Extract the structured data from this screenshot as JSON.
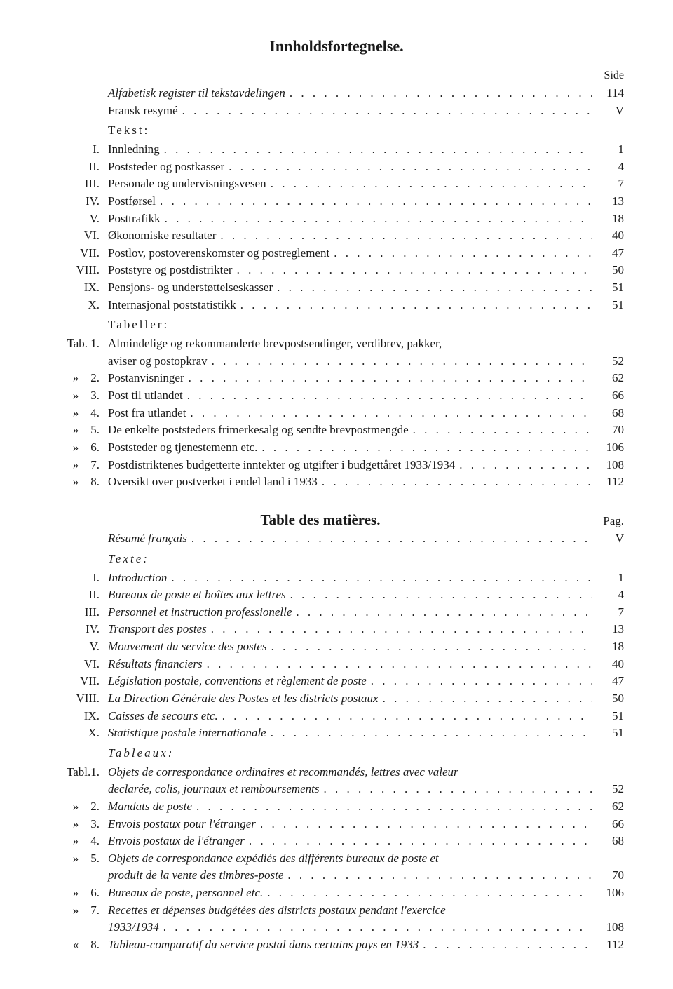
{
  "heading_no": "Innholdsfortegnelse.",
  "page_label_no": "Side",
  "pre_no": [
    {
      "prefix": "",
      "label": "Alfabetisk register til tekstavdelingen",
      "page": "114",
      "italic": true
    },
    {
      "prefix": "",
      "label": "Fransk resymé",
      "page": "V"
    }
  ],
  "tekst_heading": "Tekst:",
  "tekst_items": [
    {
      "prefix": "I.",
      "label": "Innledning",
      "page": "1"
    },
    {
      "prefix": "II.",
      "label": "Poststeder og postkasser",
      "page": "4"
    },
    {
      "prefix": "III.",
      "label": "Personale og undervisningsvesen",
      "page": "7"
    },
    {
      "prefix": "IV.",
      "label": "Postførsel",
      "page": "13"
    },
    {
      "prefix": "V.",
      "label": "Posttrafikk",
      "page": "18"
    },
    {
      "prefix": "VI.",
      "label": "Økonomiske resultater",
      "page": "40"
    },
    {
      "prefix": "VII.",
      "label": "Postlov, postoverenskomster og postreglement",
      "page": "47"
    },
    {
      "prefix": "VIII.",
      "label": "Poststyre og postdistrikter",
      "page": "50"
    },
    {
      "prefix": "IX.",
      "label": "Pensjons- og understøttelseskasser",
      "page": "51"
    },
    {
      "prefix": "X.",
      "label": "Internasjonal poststatistikk",
      "page": "51"
    }
  ],
  "tabeller_heading": "Tabeller:",
  "tabeller_items": [
    {
      "prefix": "Tab. 1.",
      "label": "Almindelige og rekommanderte brevpostsendinger, verdibrev, pakker,",
      "cont": "aviser og postopkrav",
      "page": "52"
    },
    {
      "prefix": "»    2.",
      "label": "Postanvisninger",
      "page": "62"
    },
    {
      "prefix": "»    3.",
      "label": "Post til utlandet",
      "page": "66"
    },
    {
      "prefix": "»    4.",
      "label": "Post fra utlandet",
      "page": "68"
    },
    {
      "prefix": "»    5.",
      "label": "De enkelte poststeders frimerkesalg og sendte brevpostmengde",
      "page": "70"
    },
    {
      "prefix": "»    6.",
      "label": "Poststeder og tjenestemenn etc.",
      "page": "106"
    },
    {
      "prefix": "»    7.",
      "label": "Postdistriktenes budgetterte inntekter og utgifter i budgettåret 1933/1934",
      "page": "108"
    },
    {
      "prefix": "»    8.",
      "label": "Oversikt over postverket i endel land i 1933",
      "page": "112"
    }
  ],
  "heading_fr": "Table des matières.",
  "page_label_fr": "Pag.",
  "pre_fr": [
    {
      "prefix": "",
      "label": "Résumé français",
      "page": "V",
      "italic": true
    }
  ],
  "texte_heading": "Texte:",
  "texte_items": [
    {
      "prefix": "I.",
      "label": "Introduction",
      "page": "1"
    },
    {
      "prefix": "II.",
      "label": "Bureaux de poste et boîtes aux lettres",
      "page": "4"
    },
    {
      "prefix": "III.",
      "label": "Personnel et instruction professionelle",
      "page": "7"
    },
    {
      "prefix": "IV.",
      "label": "Transport des postes",
      "page": "13"
    },
    {
      "prefix": "V.",
      "label": "Mouvement du service des postes",
      "page": "18"
    },
    {
      "prefix": "VI.",
      "label": "Résultats financiers",
      "page": "40"
    },
    {
      "prefix": "VII.",
      "label": "Législation postale, conventions et règlement de poste",
      "page": "47"
    },
    {
      "prefix": "VIII.",
      "label": "La Direction Générale des Postes et les districts postaux",
      "page": "50"
    },
    {
      "prefix": "IX.",
      "label": "Caisses de secours etc.",
      "page": "51"
    },
    {
      "prefix": "X.",
      "label": "Statistique postale internationale",
      "page": "51"
    }
  ],
  "tableaux_heading": "Tableaux:",
  "tableaux_items": [
    {
      "prefix": "Tabl.1.",
      "label": "Objets de correspondance ordinaires et recommandés, lettres avec valeur",
      "cont": "declarée, colis, journaux et remboursements",
      "page": "52"
    },
    {
      "prefix": "»    2.",
      "label": "Mandats de poste",
      "page": "62"
    },
    {
      "prefix": "»    3.",
      "label": "Envois postaux pour l'étranger",
      "page": "66"
    },
    {
      "prefix": "»    4.",
      "label": "Envois postaux de l'étranger",
      "page": "68"
    },
    {
      "prefix": "»    5.",
      "label": "Objets de correspondance expédiés des différents bureaux de poste et",
      "cont": "produit de la vente des timbres-poste",
      "page": "70"
    },
    {
      "prefix": "»    6.",
      "label": "Bureaux de poste, personnel etc.",
      "page": "106"
    },
    {
      "prefix": "»    7.",
      "label": "Recettes et dépenses budgétées des districts postaux pendant l'exercice",
      "cont": "1933/1934",
      "page": "108"
    },
    {
      "prefix": "«    8.",
      "label": "Tableau-comparatif du service postal dans certains pays en 1933",
      "page": "112"
    }
  ]
}
